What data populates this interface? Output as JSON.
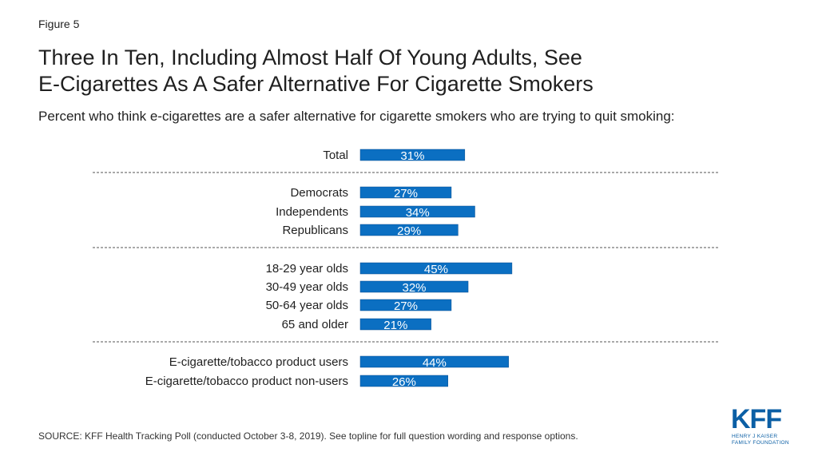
{
  "figure_label": "Figure 5",
  "title_line1": "Three In Ten, Including Almost Half Of Young Adults, See",
  "title_line2": "E-Cigarettes As A Safer Alternative For Cigarette Smokers",
  "subtitle": "Percent who think e-cigarettes are a safer alternative for cigarette smokers who are trying to quit smoking:",
  "source": "SOURCE: KFF Health Tracking Poll (conducted October 3-8, 2019). See topline for full question wording and response options.",
  "logo": {
    "text": "KFF",
    "sub_line1": "HENRY J KAISER",
    "sub_line2": "FAMILY FOUNDATION"
  },
  "colors": {
    "bar": "#0b6fc2",
    "bar_border": "#0a4f8f",
    "divider": "#555555"
  },
  "chart_data": {
    "type": "bar",
    "orientation": "horizontal",
    "categories": [
      "Total",
      "Democrats",
      "Independents",
      "Republicans",
      "18-29 year olds",
      "30-49 year olds",
      "50-64 year olds",
      "65 and older",
      "E-cigarette/tobacco product users",
      "E-cigarette/tobacco product non-users"
    ],
    "values": [
      31,
      27,
      34,
      29,
      45,
      32,
      27,
      21,
      44,
      26
    ],
    "value_labels": [
      "31%",
      "27%",
      "34%",
      "29%",
      "45%",
      "32%",
      "27%",
      "21%",
      "44%",
      "26%"
    ],
    "groups": [
      [
        0
      ],
      [
        1,
        2,
        3
      ],
      [
        4,
        5,
        6,
        7
      ],
      [
        8,
        9
      ]
    ],
    "xlim": [
      0,
      100
    ],
    "grid": false,
    "legend": "none"
  }
}
